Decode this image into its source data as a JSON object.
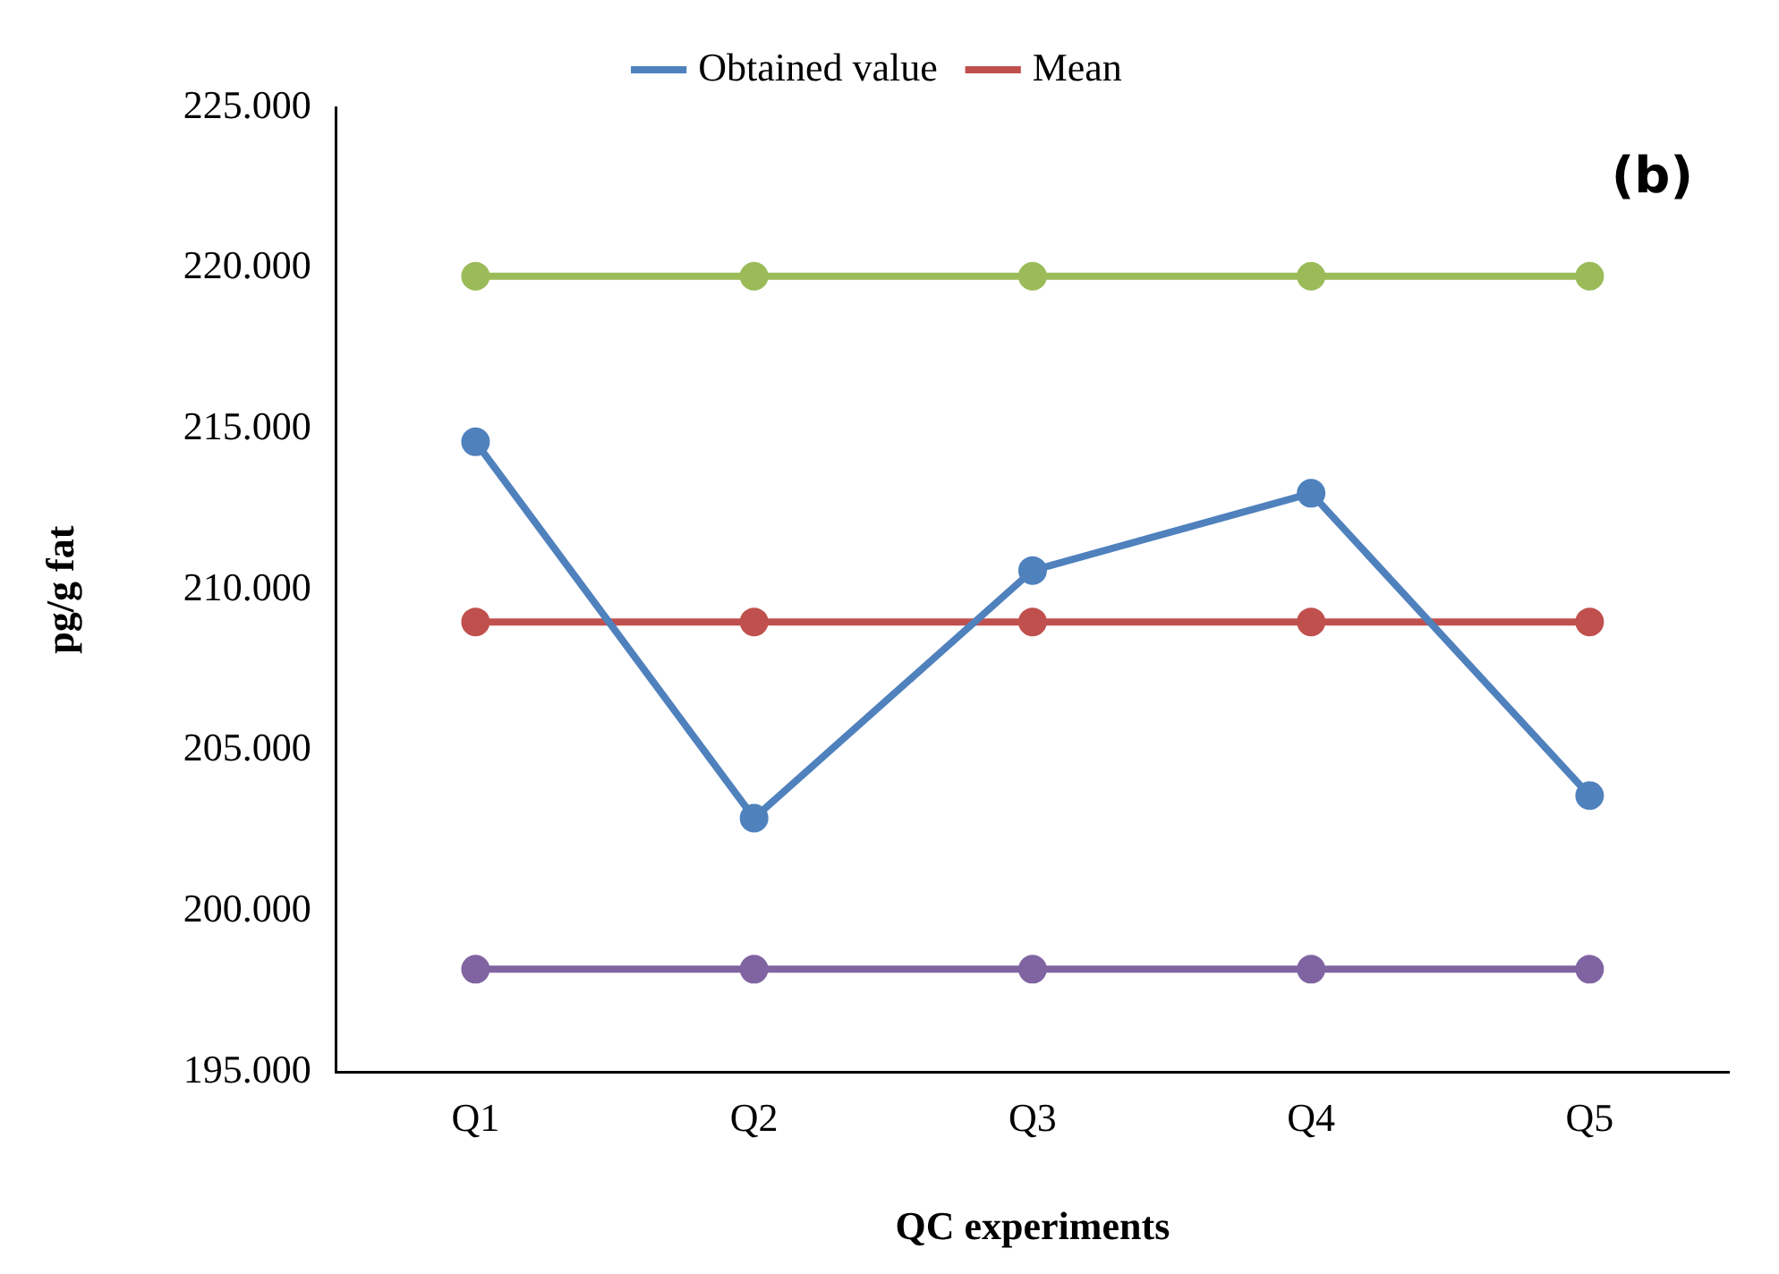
{
  "chart_data": {
    "type": "line",
    "xlabel": "QC experiments",
    "ylabel": "pg/g fat",
    "annotations": [
      "(b)"
    ],
    "categories": [
      "Q1",
      "Q2",
      "Q3",
      "Q4",
      "Q5"
    ],
    "series": [
      {
        "name": "Obtained value",
        "color": "#4f81bd",
        "values": [
          214.6,
          202.9,
          210.6,
          213.0,
          203.6
        ]
      },
      {
        "name": "Mean",
        "color": "#c0504d",
        "values": [
          209.0,
          209.0,
          209.0,
          209.0,
          209.0
        ]
      },
      {
        "color": "#9bbb59",
        "values": [
          219.75,
          219.75,
          219.75,
          219.75,
          219.75
        ]
      },
      {
        "color": "#8064a2",
        "values": [
          198.2,
          198.2,
          198.2,
          198.2,
          198.2
        ]
      }
    ],
    "ylim": [
      195,
      225
    ],
    "yticks": [
      {
        "value": 195,
        "label": "195.000"
      },
      {
        "value": 200,
        "label": "200.000"
      },
      {
        "value": 205,
        "label": "205.000"
      },
      {
        "value": 210,
        "label": "210.000"
      },
      {
        "value": 215,
        "label": "215.000"
      },
      {
        "value": 220,
        "label": "220.000"
      },
      {
        "value": 225,
        "label": "225.000"
      }
    ],
    "grid": false,
    "legend": "top",
    "marker": "circle",
    "line_style": "solid"
  }
}
